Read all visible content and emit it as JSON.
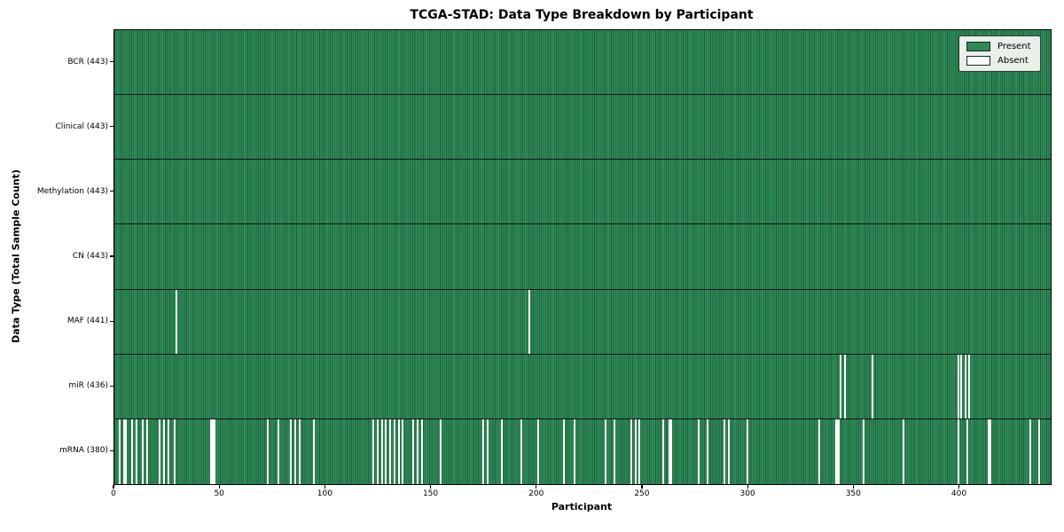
{
  "title": "TCGA-STAD: Data Type Breakdown by Participant",
  "xlabel": "Participant",
  "ylabel": "Data Type (Total Sample Count)",
  "colors": {
    "present": "#2e8b57",
    "present_edge": "#20603f",
    "absent": "#ffffff",
    "row_divider": "#151515",
    "legend_bg": "#e9efe9"
  },
  "chart_data": {
    "type": "heatmap",
    "title": "TCGA-STAD: Data Type Breakdown by Participant",
    "xlabel": "Participant",
    "ylabel": "Data Type (Total Sample Count)",
    "legend": [
      "Present",
      "Absent"
    ],
    "legend_position": "upper right",
    "n_participants": 443,
    "x_ticks": [
      0,
      50,
      100,
      150,
      200,
      250,
      300,
      350,
      400
    ],
    "cell_states": {
      "present": 1,
      "absent": 0
    },
    "rows": [
      {
        "name": "BCR",
        "label": "BCR (443)",
        "total": 443,
        "absent_participants": []
      },
      {
        "name": "Clinical",
        "label": "Clinical (443)",
        "total": 443,
        "absent_participants": []
      },
      {
        "name": "Methylation",
        "label": "Methylation (443)",
        "total": 443,
        "absent_participants": []
      },
      {
        "name": "CN",
        "label": "CN (443)",
        "total": 443,
        "absent_participants": []
      },
      {
        "name": "MAF",
        "label": "MAF (441)",
        "total": 441,
        "absent_participants": [
          29,
          196
        ]
      },
      {
        "name": "miR",
        "label": "miR (436)",
        "total": 436,
        "absent_participants": [
          343,
          345,
          358,
          399,
          400,
          402,
          404
        ]
      },
      {
        "name": "mRNA",
        "label": "mRNA (380)",
        "total": 380,
        "absent_participants": [
          2,
          4,
          5,
          8,
          10,
          13,
          15,
          21,
          23,
          25,
          28,
          45,
          46,
          47,
          72,
          77,
          83,
          85,
          87,
          94,
          122,
          124,
          126,
          128,
          130,
          132,
          134,
          136,
          141,
          143,
          145,
          154,
          174,
          176,
          183,
          192,
          200,
          212,
          217,
          232,
          236,
          244,
          246,
          248,
          259,
          262,
          263,
          276,
          280,
          288,
          290,
          299,
          333,
          341,
          342,
          354,
          373,
          399,
          403,
          413,
          414,
          433,
          437
        ]
      }
    ]
  }
}
